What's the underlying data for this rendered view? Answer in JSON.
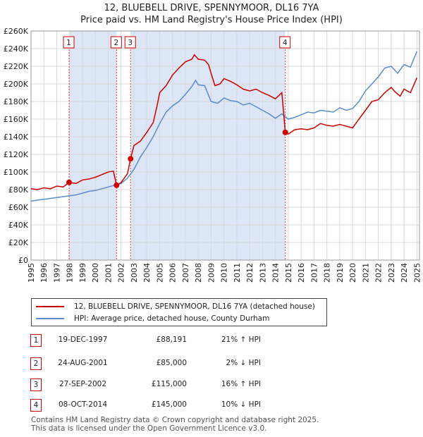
{
  "title": "12, BLUEBELL DRIVE, SPENNYMOOR, DL16 7YA",
  "subtitle": "Price paid vs. HM Land Registry's House Price Index (HPI)",
  "colors": {
    "property": "#cc0000",
    "hpi": "#5b8ccc",
    "shade": "#dde6f6",
    "grid": "#d8d8d8",
    "marker_line": "#dd4444"
  },
  "chart_data": {
    "type": "line",
    "title": "Price paid vs. HM Land Registry's House Price Index (HPI)",
    "xlabel": "",
    "ylabel": "",
    "xlim": [
      1995,
      2025.2
    ],
    "ylim": [
      0,
      260000
    ],
    "y_ticks": [
      0,
      20000,
      40000,
      60000,
      80000,
      100000,
      120000,
      140000,
      160000,
      180000,
      200000,
      220000,
      240000,
      260000
    ],
    "y_tick_labels": [
      "£0",
      "£20K",
      "£40K",
      "£60K",
      "£80K",
      "£100K",
      "£120K",
      "£140K",
      "£160K",
      "£180K",
      "£200K",
      "£220K",
      "£240K",
      "£260K"
    ],
    "x_ticks": [
      "1995",
      "1996",
      "1997",
      "1998",
      "1999",
      "2000",
      "2001",
      "2002",
      "2003",
      "2004",
      "2005",
      "2006",
      "2007",
      "2008",
      "2009",
      "2010",
      "2011",
      "2012",
      "2013",
      "2014",
      "2015",
      "2016",
      "2017",
      "2018",
      "2019",
      "2020",
      "2021",
      "2022",
      "2023",
      "2024",
      "2025"
    ],
    "shaded_ranges": [
      [
        1997.96,
        2001.65
      ],
      [
        2002.74,
        2014.77
      ]
    ],
    "series": [
      {
        "name": "12, BLUEBELL DRIVE, SPENNYMOOR, DL16 7YA (detached house)",
        "color": "#cc0000",
        "points": [
          [
            1995,
            81000
          ],
          [
            1995.5,
            80000
          ],
          [
            1996,
            82000
          ],
          [
            1996.5,
            81000
          ],
          [
            1997,
            84000
          ],
          [
            1997.5,
            83000
          ],
          [
            1997.96,
            88191
          ],
          [
            1998.5,
            87000
          ],
          [
            1999,
            91000
          ],
          [
            1999.5,
            92000
          ],
          [
            2000,
            94000
          ],
          [
            2000.5,
            97000
          ],
          [
            2001,
            100000
          ],
          [
            2001.4,
            101000
          ],
          [
            2001.65,
            85000
          ],
          [
            2002,
            88000
          ],
          [
            2002.5,
            98000
          ],
          [
            2002.74,
            115000
          ],
          [
            2003,
            130000
          ],
          [
            2003.5,
            135000
          ],
          [
            2004,
            145000
          ],
          [
            2004.5,
            156000
          ],
          [
            2004.8,
            175000
          ],
          [
            2005,
            190000
          ],
          [
            2005.5,
            198000
          ],
          [
            2006,
            210000
          ],
          [
            2006.5,
            218000
          ],
          [
            2007,
            225000
          ],
          [
            2007.5,
            228000
          ],
          [
            2007.7,
            233000
          ],
          [
            2008,
            228000
          ],
          [
            2008.5,
            227000
          ],
          [
            2008.8,
            222000
          ],
          [
            2009,
            212000
          ],
          [
            2009.3,
            198000
          ],
          [
            2009.7,
            200000
          ],
          [
            2010,
            206000
          ],
          [
            2010.5,
            203000
          ],
          [
            2011,
            199000
          ],
          [
            2011.5,
            194000
          ],
          [
            2012,
            192000
          ],
          [
            2012.5,
            194000
          ],
          [
            2013,
            190000
          ],
          [
            2013.5,
            187000
          ],
          [
            2014,
            183000
          ],
          [
            2014.5,
            190000
          ],
          [
            2014.77,
            145000
          ],
          [
            2015,
            143000
          ],
          [
            2015.5,
            148000
          ],
          [
            2016,
            149000
          ],
          [
            2016.5,
            148000
          ],
          [
            2017,
            150000
          ],
          [
            2017.5,
            155000
          ],
          [
            2018,
            153000
          ],
          [
            2018.5,
            152000
          ],
          [
            2019,
            154000
          ],
          [
            2019.5,
            152000
          ],
          [
            2020,
            150000
          ],
          [
            2020.5,
            160000
          ],
          [
            2021,
            170000
          ],
          [
            2021.5,
            180000
          ],
          [
            2022,
            182000
          ],
          [
            2022.5,
            190000
          ],
          [
            2023,
            196000
          ],
          [
            2023.3,
            191000
          ],
          [
            2023.7,
            186000
          ],
          [
            2024,
            194000
          ],
          [
            2024.5,
            190000
          ],
          [
            2025,
            207000
          ]
        ]
      },
      {
        "name": "HPI: Average price, detached house, County Durham",
        "color": "#5b8ccc",
        "points": [
          [
            1995,
            67000
          ],
          [
            1995.5,
            68000
          ],
          [
            1996,
            69000
          ],
          [
            1996.5,
            70000
          ],
          [
            1997,
            71000
          ],
          [
            1997.5,
            72000
          ],
          [
            1998,
            73000
          ],
          [
            1998.5,
            74000
          ],
          [
            1999,
            76000
          ],
          [
            1999.5,
            78000
          ],
          [
            2000,
            79000
          ],
          [
            2000.5,
            81000
          ],
          [
            2001,
            83000
          ],
          [
            2001.5,
            85000
          ],
          [
            2002,
            87000
          ],
          [
            2002.5,
            93000
          ],
          [
            2003,
            103000
          ],
          [
            2003.5,
            117000
          ],
          [
            2004,
            128000
          ],
          [
            2004.5,
            140000
          ],
          [
            2005,
            155000
          ],
          [
            2005.5,
            168000
          ],
          [
            2006,
            175000
          ],
          [
            2006.5,
            180000
          ],
          [
            2007,
            188000
          ],
          [
            2007.5,
            197000
          ],
          [
            2007.8,
            204000
          ],
          [
            2008,
            199000
          ],
          [
            2008.5,
            198000
          ],
          [
            2009,
            180000
          ],
          [
            2009.5,
            178000
          ],
          [
            2010,
            184000
          ],
          [
            2010.5,
            181000
          ],
          [
            2011,
            180000
          ],
          [
            2011.5,
            176000
          ],
          [
            2012,
            178000
          ],
          [
            2012.5,
            174000
          ],
          [
            2013,
            170000
          ],
          [
            2013.5,
            166000
          ],
          [
            2014,
            161000
          ],
          [
            2014.5,
            166000
          ],
          [
            2015,
            160000
          ],
          [
            2015.5,
            162000
          ],
          [
            2016,
            165000
          ],
          [
            2016.5,
            168000
          ],
          [
            2017,
            167000
          ],
          [
            2017.5,
            170000
          ],
          [
            2018,
            169000
          ],
          [
            2018.5,
            168000
          ],
          [
            2019,
            173000
          ],
          [
            2019.5,
            170000
          ],
          [
            2020,
            172000
          ],
          [
            2020.5,
            180000
          ],
          [
            2021,
            192000
          ],
          [
            2021.5,
            200000
          ],
          [
            2022,
            208000
          ],
          [
            2022.5,
            218000
          ],
          [
            2023,
            220000
          ],
          [
            2023.5,
            212000
          ],
          [
            2024,
            222000
          ],
          [
            2024.5,
            219000
          ],
          [
            2025,
            237000
          ]
        ]
      }
    ],
    "sales_markers": [
      {
        "label": "1",
        "year": 1997.96,
        "value": 88191
      },
      {
        "label": "2",
        "year": 2001.65,
        "value": 85000
      },
      {
        "label": "3",
        "year": 2002.74,
        "value": 115000
      },
      {
        "label": "4",
        "year": 2014.77,
        "value": 145000
      }
    ]
  },
  "legend": {
    "property": "12, BLUEBELL DRIVE, SPENNYMOOR, DL16 7YA (detached house)",
    "hpi": "HPI: Average price, detached house, County Durham"
  },
  "sales": [
    {
      "num": "1",
      "date": "19-DEC-1997",
      "price": "£88,191",
      "hpi": "21% ↑ HPI"
    },
    {
      "num": "2",
      "date": "24-AUG-2001",
      "price": "£85,000",
      "hpi": "2% ↓ HPI"
    },
    {
      "num": "3",
      "date": "27-SEP-2002",
      "price": "£115,000",
      "hpi": "16% ↑ HPI"
    },
    {
      "num": "4",
      "date": "08-OCT-2014",
      "price": "£145,000",
      "hpi": "10% ↓ HPI"
    }
  ],
  "footer": {
    "line1": "Contains HM Land Registry data © Crown copyright and database right 2025.",
    "line2": "This data is licensed under the Open Government Licence v3.0."
  }
}
